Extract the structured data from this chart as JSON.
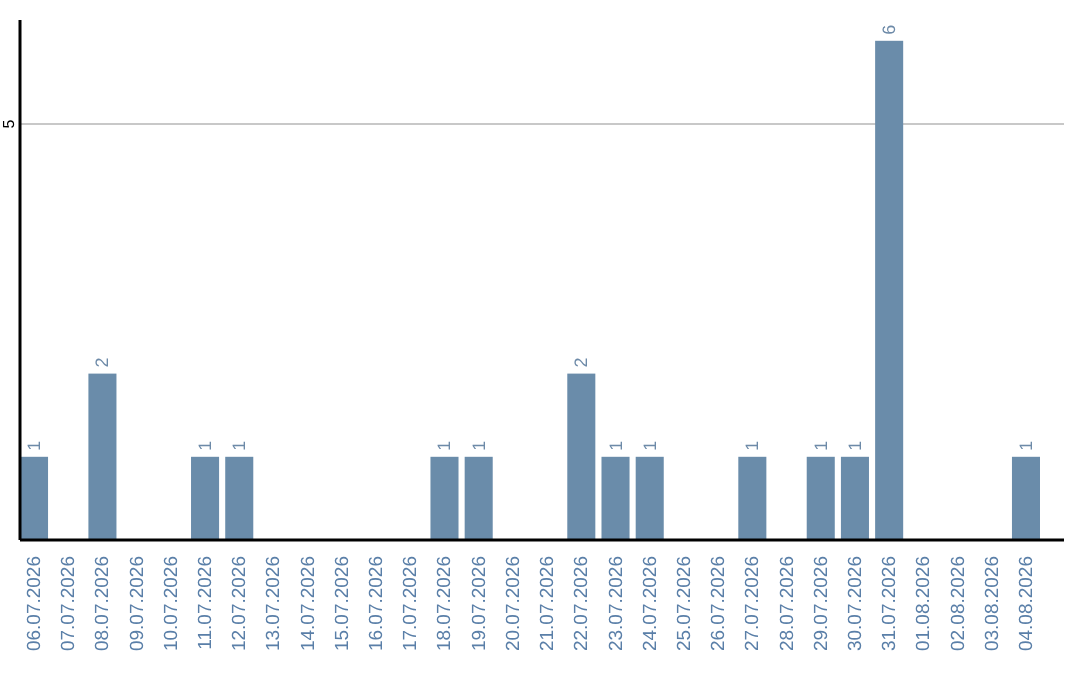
{
  "chart_data": {
    "type": "bar",
    "categories": [
      "06.07.2026",
      "07.07.2026",
      "08.07.2026",
      "09.07.2026",
      "10.07.2026",
      "11.07.2026",
      "12.07.2026",
      "13.07.2026",
      "14.07.2026",
      "15.07.2026",
      "16.07.2026",
      "17.07.2026",
      "18.07.2026",
      "19.07.2026",
      "20.07.2026",
      "21.07.2026",
      "22.07.2026",
      "23.07.2026",
      "24.07.2026",
      "25.07.2026",
      "26.07.2026",
      "27.07.2026",
      "28.07.2026",
      "29.07.2026",
      "30.07.2026",
      "31.07.2026",
      "01.08.2026",
      "02.08.2026",
      "03.08.2026",
      "04.08.2026"
    ],
    "values": [
      1,
      0,
      2,
      0,
      0,
      1,
      1,
      0,
      0,
      0,
      0,
      0,
      1,
      1,
      0,
      0,
      2,
      1,
      1,
      0,
      0,
      1,
      0,
      1,
      1,
      6,
      0,
      0,
      0,
      1
    ],
    "value_labels": [
      "1",
      null,
      "2",
      null,
      null,
      "1",
      "1",
      null,
      null,
      null,
      null,
      null,
      "1",
      "1",
      null,
      null,
      "2",
      "1",
      "1",
      null,
      null,
      "1",
      null,
      "1",
      "1",
      "6",
      null,
      null,
      null,
      "1"
    ],
    "color": "#6a8caa",
    "ylim": [
      0,
      6.25
    ],
    "yticks": [
      5
    ],
    "grid": "y"
  }
}
